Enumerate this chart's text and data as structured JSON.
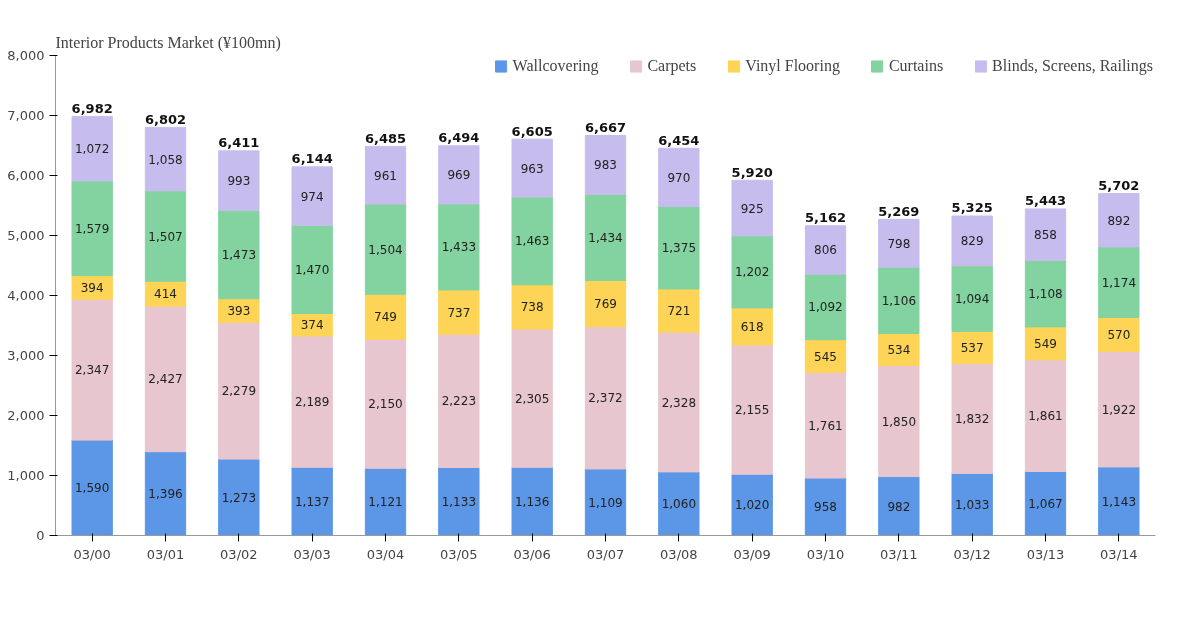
{
  "chart_data": {
    "type": "bar",
    "title": "Interior Products Market (¥100mn)",
    "stacked": true,
    "data_labels": true,
    "legend": "top",
    "grid": false,
    "categories": [
      "03/00",
      "03/01",
      "03/02",
      "03/03",
      "03/04",
      "03/05",
      "03/06",
      "03/07",
      "03/08",
      "03/09",
      "03/10",
      "03/11",
      "03/12",
      "03/13",
      "03/14"
    ],
    "ylim": [
      0,
      8000
    ],
    "yticks": [
      {
        "value": 0,
        "label": "0"
      },
      {
        "value": 1000,
        "label": "1,000"
      },
      {
        "value": 2000,
        "label": "2,000"
      },
      {
        "value": 3000,
        "label": "3,000"
      },
      {
        "value": 4000,
        "label": "4,000"
      },
      {
        "value": 5000,
        "label": "5,000"
      },
      {
        "value": 6000,
        "label": "6,000"
      },
      {
        "value": 7000,
        "label": "7,000"
      },
      {
        "value": 8000,
        "label": "8,000"
      }
    ],
    "series": [
      {
        "name": "Wallcovering",
        "color": "#5b97e6",
        "values": [
          1590,
          1396,
          1273,
          1137,
          1121,
          1133,
          1136,
          1109,
          1060,
          1020,
          958,
          982,
          1033,
          1067,
          1143
        ],
        "value_labels": [
          "1,590",
          "1,396",
          "1,273",
          "1,137",
          "1,121",
          "1,133",
          "1,136",
          "1,109",
          "1,060",
          "1,020",
          "958",
          "982",
          "1,033",
          "1,067",
          "1,143"
        ]
      },
      {
        "name": "Carpets",
        "color": "#e8c6d0",
        "values": [
          2347,
          2427,
          2279,
          2189,
          2150,
          2223,
          2305,
          2372,
          2328,
          2155,
          1761,
          1850,
          1832,
          1861,
          1922
        ],
        "value_labels": [
          "2,347",
          "2,427",
          "2,279",
          "2,189",
          "2,150",
          "2,223",
          "2,305",
          "2,372",
          "2,328",
          "2,155",
          "1,761",
          "1,850",
          "1,832",
          "1,861",
          "1,922"
        ]
      },
      {
        "name": "Vinyl Flooring",
        "color": "#fdd456",
        "values": [
          394,
          414,
          393,
          374,
          749,
          737,
          738,
          769,
          721,
          618,
          545,
          534,
          537,
          549,
          570
        ],
        "value_labels": [
          "394",
          "414",
          "393",
          "374",
          "749",
          "737",
          "738",
          "769",
          "721",
          "618",
          "545",
          "534",
          "537",
          "549",
          "570"
        ]
      },
      {
        "name": "Curtains",
        "color": "#82d3a0",
        "values": [
          1579,
          1507,
          1473,
          1470,
          1504,
          1433,
          1463,
          1434,
          1375,
          1202,
          1092,
          1106,
          1094,
          1108,
          1174
        ],
        "value_labels": [
          "1,579",
          "1,507",
          "1,473",
          "1,470",
          "1,504",
          "1,433",
          "1,463",
          "1,434",
          "1,375",
          "1,202",
          "1,092",
          "1,106",
          "1,094",
          "1,108",
          "1,174"
        ]
      },
      {
        "name": "Blinds, Screens, Railings",
        "color": "#c6bdee",
        "values": [
          1072,
          1058,
          993,
          974,
          961,
          969,
          963,
          983,
          970,
          925,
          806,
          798,
          829,
          858,
          892
        ],
        "value_labels": [
          "1,072",
          "1,058",
          "993",
          "974",
          "961",
          "969",
          "963",
          "983",
          "970",
          "925",
          "806",
          "798",
          "829",
          "858",
          "892"
        ]
      }
    ],
    "totals": [
      "6,982",
      "6,802",
      "6,411",
      "6,144",
      "6,485",
      "6,494",
      "6,605",
      "6,667",
      "6,454",
      "5,920",
      "5,162",
      "5,269",
      "5,325",
      "5,443",
      "5,702"
    ]
  }
}
